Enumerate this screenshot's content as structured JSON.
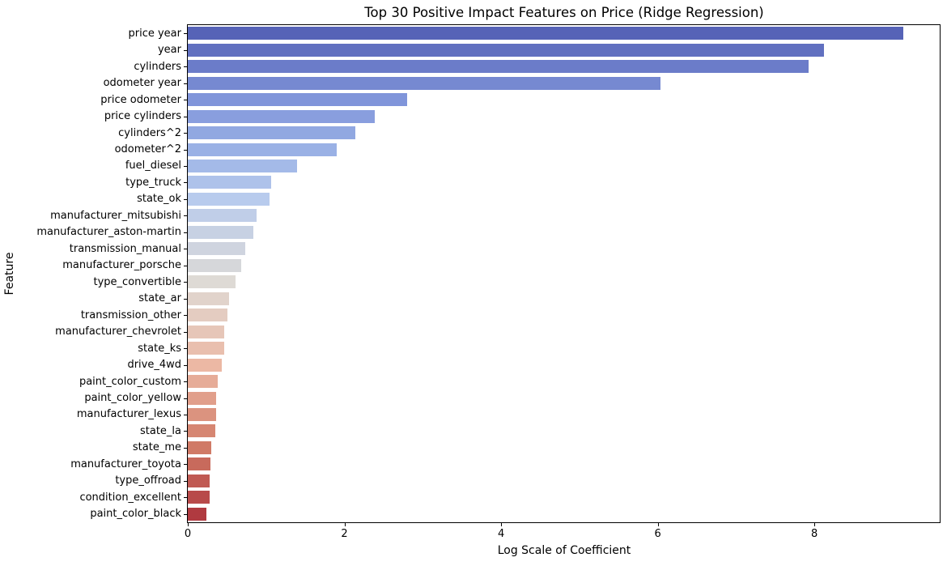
{
  "chart_data": {
    "type": "bar",
    "orientation": "horizontal",
    "title": "Top 30 Positive Impact Features on Price (Ridge Regression)",
    "xlabel": "Log Scale of Coefficient",
    "ylabel": "Feature",
    "xlim": [
      0,
      9.6
    ],
    "x_ticks": [
      0,
      2,
      4,
      6,
      8
    ],
    "grid": false,
    "legend": "none",
    "palette": "coolwarm",
    "categories": [
      "price year",
      "year",
      "cylinders",
      "odometer year",
      "price odometer",
      "price cylinders",
      "cylinders^2",
      "odometer^2",
      "fuel_diesel",
      "type_truck",
      "state_ok",
      "manufacturer_mitsubishi",
      "manufacturer_aston-martin",
      "transmission_manual",
      "manufacturer_porsche",
      "type_convertible",
      "state_ar",
      "transmission_other",
      "manufacturer_chevrolet",
      "state_ks",
      "drive_4wd",
      "paint_color_custom",
      "paint_color_yellow",
      "manufacturer_lexus",
      "state_la",
      "state_me",
      "manufacturer_toyota",
      "type_offroad",
      "condition_excellent",
      "paint_color_black"
    ],
    "values": [
      9.13,
      8.12,
      7.93,
      6.04,
      2.8,
      2.39,
      2.14,
      1.9,
      1.4,
      1.06,
      1.04,
      0.88,
      0.84,
      0.73,
      0.68,
      0.61,
      0.53,
      0.51,
      0.47,
      0.46,
      0.43,
      0.38,
      0.36,
      0.36,
      0.35,
      0.3,
      0.285,
      0.28,
      0.275,
      0.235
    ],
    "bar_colors": [
      "#5663b7",
      "#6170c0",
      "#6b7cc9",
      "#7689d1",
      "#8095da",
      "#899ede",
      "#91a8e1",
      "#9ab1e5",
      "#a4bae8",
      "#aec2ea",
      "#b8cbed",
      "#c0cee8",
      "#c7d1e3",
      "#cfd4df",
      "#d6d7da",
      "#dedad5",
      "#e1d3cb",
      "#e4ccc1",
      "#e6c6b8",
      "#e9bfae",
      "#ecb8a4",
      "#e6ac98",
      "#e19f8b",
      "#db937f",
      "#d68672",
      "#d07a66",
      "#c86a5c",
      "#c05a53",
      "#b84a4a",
      "#b03a40"
    ]
  }
}
